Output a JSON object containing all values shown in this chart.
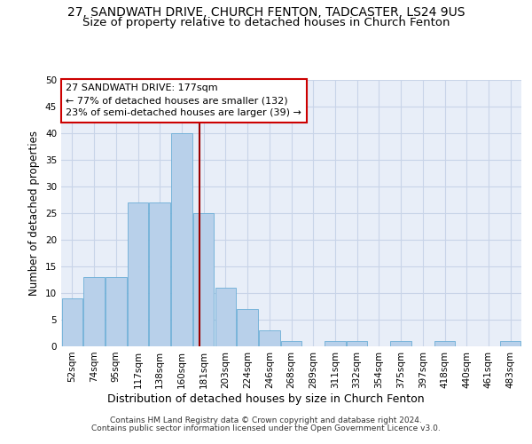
{
  "title_line1": "27, SANDWATH DRIVE, CHURCH FENTON, TADCASTER, LS24 9US",
  "title_line2": "Size of property relative to detached houses in Church Fenton",
  "xlabel": "Distribution of detached houses by size in Church Fenton",
  "ylabel": "Number of detached properties",
  "footnote1": "Contains HM Land Registry data © Crown copyright and database right 2024.",
  "footnote2": "Contains public sector information licensed under the Open Government Licence v3.0.",
  "bin_labels": [
    "52sqm",
    "74sqm",
    "95sqm",
    "117sqm",
    "138sqm",
    "160sqm",
    "181sqm",
    "203sqm",
    "224sqm",
    "246sqm",
    "268sqm",
    "289sqm",
    "311sqm",
    "332sqm",
    "354sqm",
    "375sqm",
    "397sqm",
    "418sqm",
    "440sqm",
    "461sqm",
    "483sqm"
  ],
  "bar_values": [
    9,
    13,
    13,
    27,
    27,
    40,
    25,
    11,
    7,
    3,
    1,
    0,
    1,
    1,
    0,
    1,
    0,
    1,
    0,
    0,
    1
  ],
  "bar_color": "#b8d0ea",
  "bar_edge_color": "#6baed6",
  "bar_width": 0.95,
  "red_line_color": "#990000",
  "annotation_text": "27 SANDWATH DRIVE: 177sqm\n← 77% of detached houses are smaller (132)\n23% of semi-detached houses are larger (39) →",
  "annotation_box_color": "#ffffff",
  "annotation_box_edge_color": "#cc0000",
  "ylim": [
    0,
    50
  ],
  "yticks": [
    0,
    5,
    10,
    15,
    20,
    25,
    30,
    35,
    40,
    45,
    50
  ],
  "grid_color": "#c8d4e8",
  "background_color": "#e8eef8",
  "fig_background": "#ffffff",
  "title_fontsize": 10,
  "subtitle_fontsize": 9.5,
  "xlabel_fontsize": 9,
  "ylabel_fontsize": 8.5,
  "tick_fontsize": 7.5,
  "annotation_fontsize": 8,
  "footnote_fontsize": 6.5
}
